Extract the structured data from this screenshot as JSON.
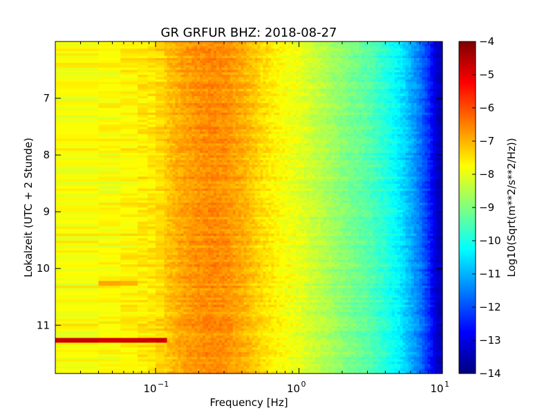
{
  "chart_data": {
    "type": "heatmap",
    "title": "GR GRFUR BHZ: 2018-08-27",
    "xlabel": "Frequency [Hz]",
    "ylabel": "Lokalzeit (UTC + 2 Stunde)",
    "xscale": "log",
    "x_range_hz": [
      0.02,
      10
    ],
    "x_ticks": [
      {
        "value": 0.1,
        "base": "10",
        "exp": "-1"
      },
      {
        "value": 1,
        "base": "10",
        "exp": "0"
      },
      {
        "value": 10,
        "base": "10",
        "exp": "1"
      }
    ],
    "y_range_hours": [
      6.0,
      11.85
    ],
    "y_inverted": true,
    "y_ticks": [
      {
        "value": 7,
        "label": "7"
      },
      {
        "value": 8,
        "label": "8"
      },
      {
        "value": 9,
        "label": "9"
      },
      {
        "value": 10,
        "label": "10"
      },
      {
        "value": 11,
        "label": "11"
      }
    ],
    "colorbar": {
      "label": "Log10(Sqrt(m**2/s**2/Hz))",
      "range": [
        -14,
        -4
      ],
      "colormap": "jet",
      "ticks": [
        {
          "value": -4,
          "label": "−4"
        },
        {
          "value": -5,
          "label": "−5"
        },
        {
          "value": -6,
          "label": "−6"
        },
        {
          "value": -7,
          "label": "−7"
        },
        {
          "value": -8,
          "label": "−8"
        },
        {
          "value": -9,
          "label": "−9"
        },
        {
          "value": -10,
          "label": "−10"
        },
        {
          "value": -11,
          "label": "−11"
        },
        {
          "value": -12,
          "label": "−12"
        },
        {
          "value": -13,
          "label": "−13"
        },
        {
          "value": -14,
          "label": "−14"
        }
      ]
    },
    "spectrum_profile": {
      "frequency_hz": [
        0.02,
        0.04,
        0.057,
        0.075,
        0.1,
        0.12,
        0.15,
        0.19,
        0.25,
        0.32,
        0.42,
        0.55,
        0.7,
        1.0,
        1.5,
        2.0,
        3.0,
        4.0,
        5.0,
        6.0,
        7.0,
        8.0,
        9.0,
        10.0
      ],
      "log10_amplitude": [
        -7.8,
        -7.8,
        -7.75,
        -7.6,
        -7.5,
        -7.2,
        -6.9,
        -6.7,
        -6.6,
        -6.7,
        -7.0,
        -7.4,
        -7.7,
        -8.0,
        -8.5,
        -8.9,
        -9.4,
        -9.9,
        -10.4,
        -11.0,
        -11.6,
        -12.3,
        -13.2,
        -13.6
      ]
    },
    "features": [
      {
        "description": "high-amplitude band",
        "time_hours": 11.27,
        "freq_max_hz": 0.12,
        "log10_amplitude": -4.8
      },
      {
        "description": "elevated band",
        "time_hours": 10.27,
        "freq_min_hz": 0.04,
        "freq_max_hz": 0.075,
        "log10_amplitude": -6.9
      }
    ]
  }
}
